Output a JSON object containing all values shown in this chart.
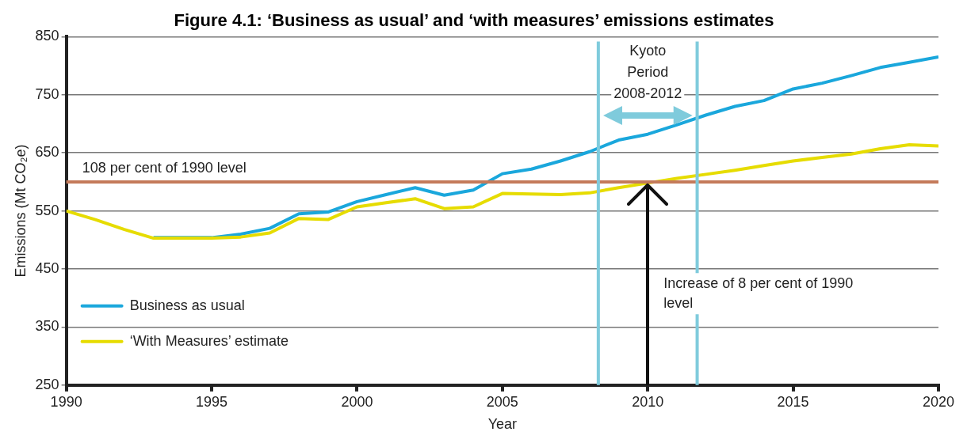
{
  "chart_data": {
    "type": "line",
    "title": "Figure 4.1: ‘Business as usual’ and ‘with measures’ emissions estimates",
    "xlabel": "Year",
    "ylabel": "Emissions (Mt CO₂e)",
    "x": [
      1990,
      1991,
      1992,
      1993,
      1994,
      1995,
      1996,
      1997,
      1998,
      1999,
      2000,
      2001,
      2002,
      2003,
      2004,
      2005,
      2006,
      2007,
      2008,
      2009,
      2010,
      2011,
      2012,
      2013,
      2014,
      2015,
      2016,
      2017,
      2018,
      2019,
      2020
    ],
    "series": [
      {
        "name": "Business as usual",
        "color": "#1aa7dc",
        "values": [
          null,
          null,
          null,
          504,
          504,
          504,
          510,
          520,
          545,
          548,
          566,
          578,
          590,
          577,
          586,
          614,
          622,
          636,
          652,
          672,
          682,
          698,
          715,
          730,
          740,
          760,
          770,
          783,
          797,
          806,
          815
        ]
      },
      {
        "name": "‘With Measures’ estimate",
        "color": "#e6dc00",
        "values": [
          550,
          535,
          518,
          503,
          503,
          503,
          505,
          512,
          537,
          535,
          557,
          564,
          571,
          554,
          557,
          580,
          579,
          578,
          581,
          590,
          598,
          606,
          613,
          620,
          628,
          636,
          642,
          648,
          657,
          664,
          662
        ]
      }
    ],
    "xlim": [
      1990,
      2020
    ],
    "xticks": [
      1990,
      1995,
      2000,
      2005,
      2010,
      2015,
      2020
    ],
    "ylim": [
      250,
      850
    ],
    "yticks": [
      250,
      350,
      450,
      550,
      650,
      750,
      850
    ],
    "ref_lines": [
      {
        "axis": "y",
        "value": 600,
        "label": "108 per cent of 1990 level",
        "color": "#c47a5a"
      },
      {
        "axis": "x",
        "value": 2008.3,
        "color": "#7fcbdc"
      },
      {
        "axis": "x",
        "value": 2011.7,
        "color": "#7fcbdc"
      }
    ],
    "annotations": [
      "Kyoto Period 2008-2012",
      "Increase of 8 per cent of 1990 level"
    ],
    "grid": "y",
    "legend": "bottom left",
    "marker": "none",
    "line_style": "solid"
  }
}
